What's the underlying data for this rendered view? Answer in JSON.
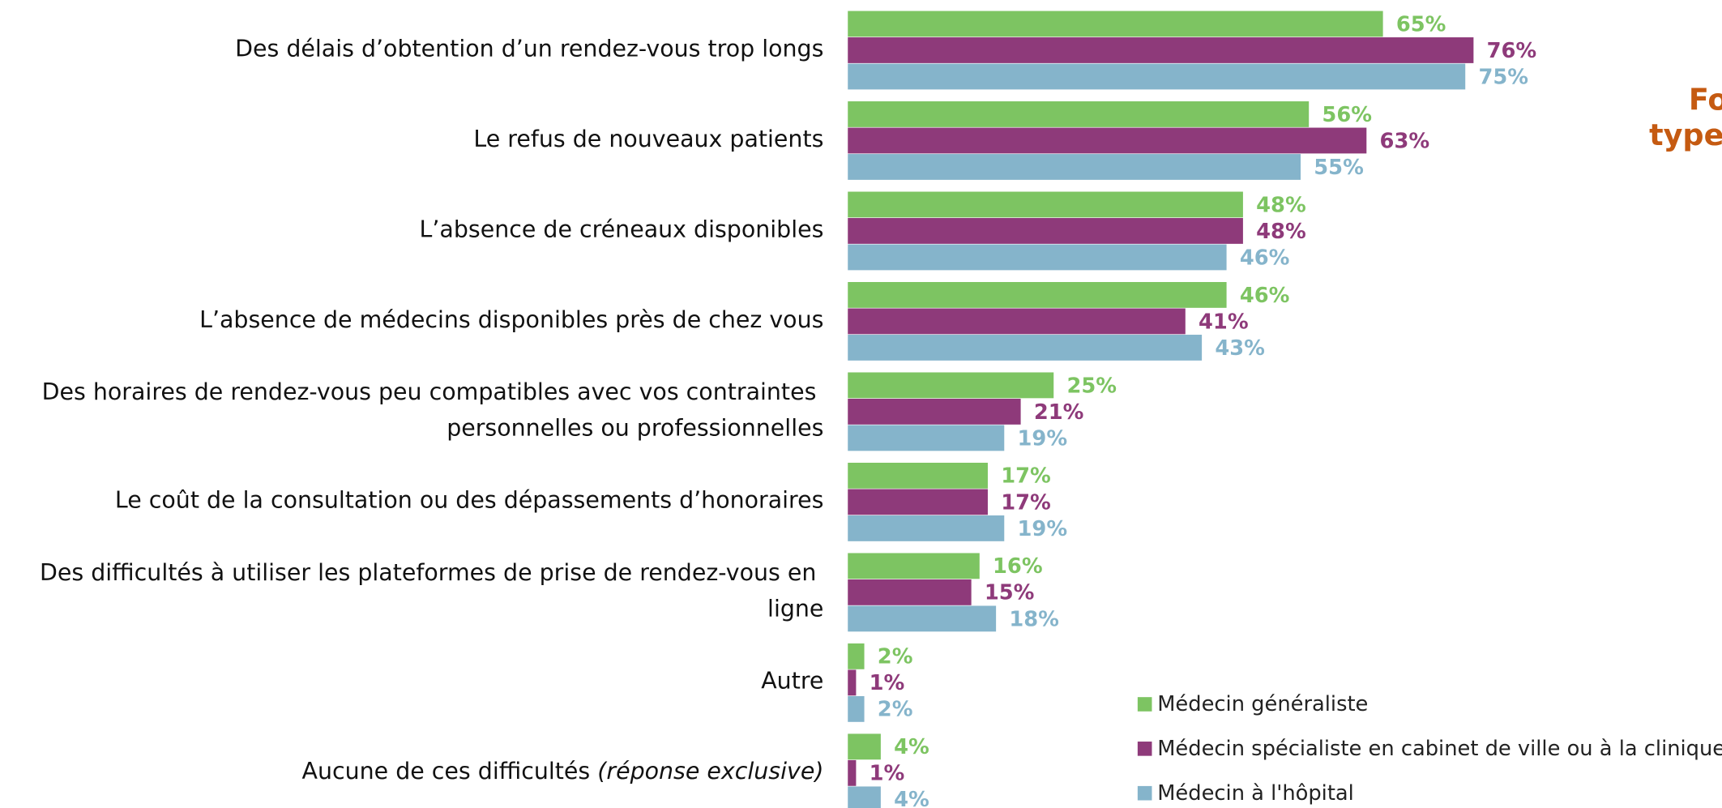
{
  "chart_data": {
    "type": "hbar",
    "title_lines": [
      "Fo",
      "type"
    ],
    "categories": [
      "Des délais d’obtention d’un rendez-vous trop longs",
      "Le refus de nouveaux patients",
      "L’absence de créneaux disponibles",
      "L’absence de médecins disponibles près de chez vous",
      "Des horaires de rendez-vous peu compatibles avec vos contraintes personnelles ou professionnelles",
      "Le coût de la consultation ou des dépassements d’honoraires",
      "Des difficultés à utiliser les plateformes de prise de rendez-vous en ligne",
      "Autre",
      "Aucune de ces difficultés (réponse exclusive)"
    ],
    "series": [
      {
        "name": "Médecin généraliste",
        "color": "#7dc462",
        "values": [
          65,
          56,
          48,
          46,
          25,
          17,
          16,
          2,
          4
        ],
        "value_labels": [
          "65%",
          "56%",
          "48%",
          "46%",
          "25%",
          "17%",
          "16%",
          "2%",
          "4%"
        ]
      },
      {
        "name": "Médecin spécialiste en cabinet de ville ou à la clinique",
        "color": "#8e3a7a",
        "values": [
          76,
          63,
          48,
          41,
          21,
          17,
          15,
          1,
          1
        ],
        "value_labels": [
          "76%",
          "63%",
          "48%",
          "41%",
          "21%",
          "17%",
          "15%",
          "1%",
          "1%"
        ]
      },
      {
        "name": "Médecin à l'hôpital",
        "color": "#85b4cb",
        "values": [
          75,
          55,
          46,
          43,
          19,
          19,
          18,
          2,
          4
        ],
        "value_labels": [
          "75%",
          "55%",
          "46%",
          "43%",
          "19%",
          "19%",
          "18%",
          "2%",
          "4%"
        ]
      }
    ],
    "xlim": [
      0,
      100
    ]
  }
}
